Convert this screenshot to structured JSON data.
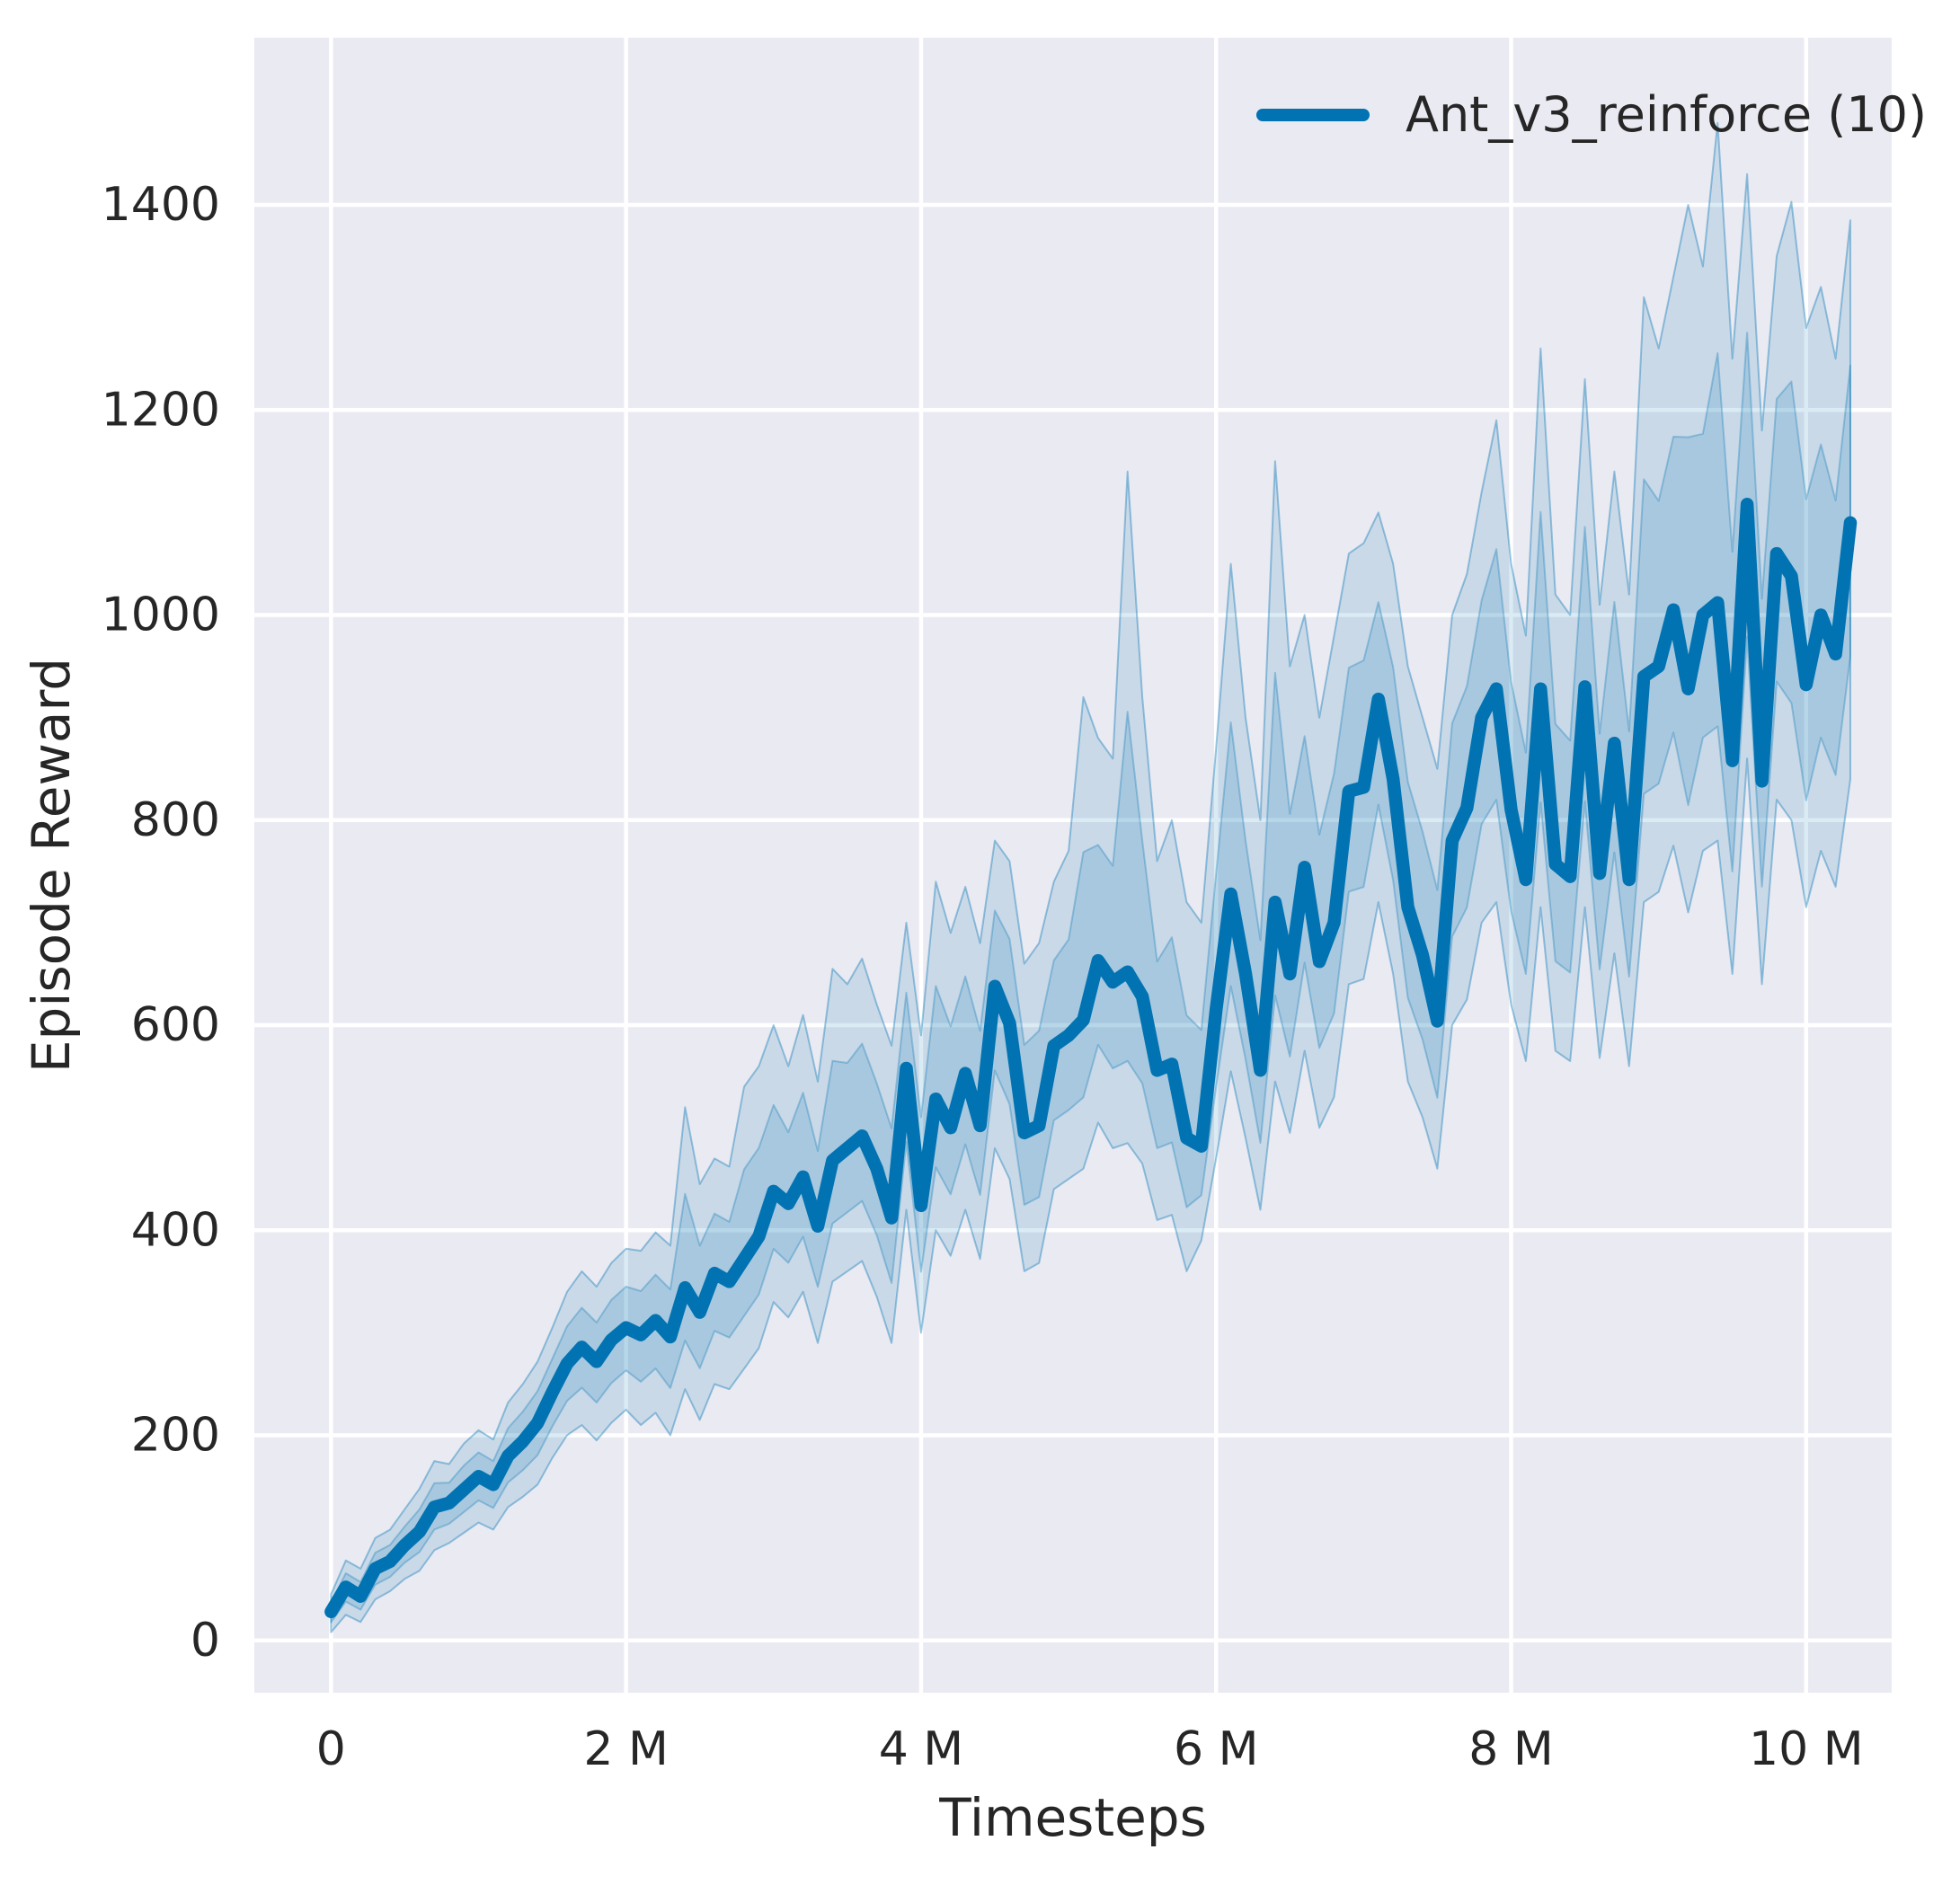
{
  "figure": {
    "background": "#ffffff",
    "plot_background": "#eaeaf2",
    "grid_color": "#ffffff",
    "text_color": "#262626",
    "accent": "#0173b2"
  },
  "legend": {
    "label": "Ant_v3_reinforce (10)",
    "position": "upper right"
  },
  "axes": {
    "xlabel": "Timesteps",
    "ylabel": "Episode Reward",
    "x_ticks": [
      {
        "value": 0,
        "label": "0"
      },
      {
        "value": 2,
        "label": "2 M"
      },
      {
        "value": 4,
        "label": "4 M"
      },
      {
        "value": 6,
        "label": "6 M"
      },
      {
        "value": 8,
        "label": "8 M"
      },
      {
        "value": 10,
        "label": "10 M"
      }
    ],
    "y_ticks": [
      {
        "value": 0,
        "label": "0"
      },
      {
        "value": 200,
        "label": "200"
      },
      {
        "value": 400,
        "label": "400"
      },
      {
        "value": 600,
        "label": "600"
      },
      {
        "value": 800,
        "label": "800"
      },
      {
        "value": 1000,
        "label": "1000"
      },
      {
        "value": 1200,
        "label": "1200"
      },
      {
        "value": 1400,
        "label": "1400"
      }
    ]
  },
  "chart_data": {
    "type": "line",
    "title": "",
    "xlabel": "Timesteps",
    "ylabel": "Episode Reward",
    "x_unit": "millions of timesteps",
    "xlim": [
      -0.52,
      10.58
    ],
    "ylim": [
      -51,
      1563
    ],
    "grid": true,
    "legend_position": "upper right",
    "series": [
      {
        "name": "Ant_v3_reinforce (10)",
        "color": "#0173b2",
        "x": [
          0.0,
          0.1,
          0.2,
          0.3,
          0.4,
          0.5,
          0.6,
          0.7,
          0.8,
          0.9,
          1.0,
          1.1,
          1.2,
          1.3,
          1.4,
          1.5,
          1.6,
          1.7,
          1.8,
          1.9,
          2.0,
          2.1,
          2.2,
          2.3,
          2.4,
          2.5,
          2.6,
          2.7,
          2.8,
          2.9,
          3.0,
          3.1,
          3.2,
          3.3,
          3.4,
          3.5,
          3.6,
          3.7,
          3.8,
          3.9,
          4.0,
          4.1,
          4.2,
          4.3,
          4.4,
          4.5,
          4.6,
          4.7,
          4.8,
          4.9,
          5.0,
          5.1,
          5.2,
          5.3,
          5.4,
          5.5,
          5.6,
          5.7,
          5.8,
          5.9,
          6.0,
          6.1,
          6.2,
          6.3,
          6.4,
          6.5,
          6.6,
          6.7,
          6.8,
          6.9,
          7.0,
          7.1,
          7.2,
          7.3,
          7.4,
          7.5,
          7.6,
          7.7,
          7.8,
          7.9,
          8.0,
          8.1,
          8.2,
          8.3,
          8.4,
          8.5,
          8.6,
          8.7,
          8.8,
          8.9,
          9.0,
          9.1,
          9.2,
          9.3,
          9.4,
          9.5,
          9.6,
          9.7,
          9.8,
          9.9,
          10.0,
          10.1,
          10.2,
          10.3
        ],
        "mean": [
          28,
          52,
          43,
          70,
          77,
          93,
          106,
          130,
          134,
          147,
          160,
          152,
          180,
          194,
          212,
          242,
          270,
          286,
          272,
          293,
          305,
          298,
          312,
          296,
          344,
          320,
          358,
          350,
          372,
          394,
          438,
          426,
          452,
          404,
          468,
          480,
          492,
          460,
          412,
          558,
          424,
          528,
          500,
          553,
          502,
          638,
          602,
          495,
          502,
          580,
          590,
          605,
          663,
          642,
          652,
          628,
          556,
          562,
          490,
          482,
          615,
          728,
          650,
          556,
          720,
          650,
          754,
          662,
          700,
          828,
          832,
          918,
          840,
          715,
          668,
          604,
          780,
          812,
          900,
          928,
          810,
          742,
          928,
          757,
          745,
          930,
          748,
          875,
          742,
          940,
          950,
          1005,
          928,
          1000,
          1012,
          858,
          1108,
          838,
          1060,
          1038,
          932,
          1000,
          962,
          1090
        ],
        "band_low": [
          8,
          25,
          18,
          40,
          48,
          60,
          68,
          88,
          95,
          105,
          115,
          108,
          130,
          140,
          152,
          178,
          200,
          210,
          195,
          212,
          225,
          210,
          222,
          200,
          245,
          215,
          250,
          245,
          265,
          285,
          330,
          315,
          340,
          290,
          350,
          360,
          370,
          335,
          290,
          420,
          300,
          400,
          375,
          420,
          372,
          480,
          450,
          360,
          368,
          440,
          450,
          460,
          505,
          480,
          485,
          465,
          410,
          415,
          360,
          390,
          470,
          555,
          490,
          420,
          545,
          495,
          575,
          500,
          530,
          640,
          645,
          720,
          650,
          545,
          510,
          460,
          600,
          625,
          700,
          720,
          620,
          565,
          715,
          575,
          565,
          715,
          568,
          670,
          560,
          720,
          730,
          775,
          710,
          770,
          780,
          650,
          860,
          640,
          820,
          800,
          715,
          770,
          735,
          840
        ],
        "band_high": [
          45,
          78,
          70,
          100,
          108,
          128,
          148,
          175,
          172,
          192,
          205,
          196,
          232,
          250,
          272,
          305,
          340,
          360,
          345,
          368,
          382,
          380,
          398,
          385,
          520,
          445,
          470,
          462,
          540,
          560,
          600,
          560,
          610,
          545,
          655,
          640,
          665,
          620,
          580,
          700,
          590,
          740,
          690,
          735,
          680,
          780,
          760,
          660,
          680,
          740,
          770,
          920,
          880,
          860,
          1140,
          920,
          760,
          800,
          720,
          700,
          870,
          1050,
          900,
          800,
          1150,
          950,
          1000,
          900,
          980,
          1060,
          1070,
          1100,
          1050,
          950,
          900,
          850,
          1000,
          1040,
          1120,
          1190,
          1050,
          980,
          1260,
          1020,
          1000,
          1230,
          1010,
          1140,
          1020,
          1310,
          1260,
          1330,
          1400,
          1340,
          1480,
          1250,
          1430,
          1180,
          1350,
          1403,
          1280,
          1320,
          1250,
          1385
        ]
      }
    ]
  }
}
